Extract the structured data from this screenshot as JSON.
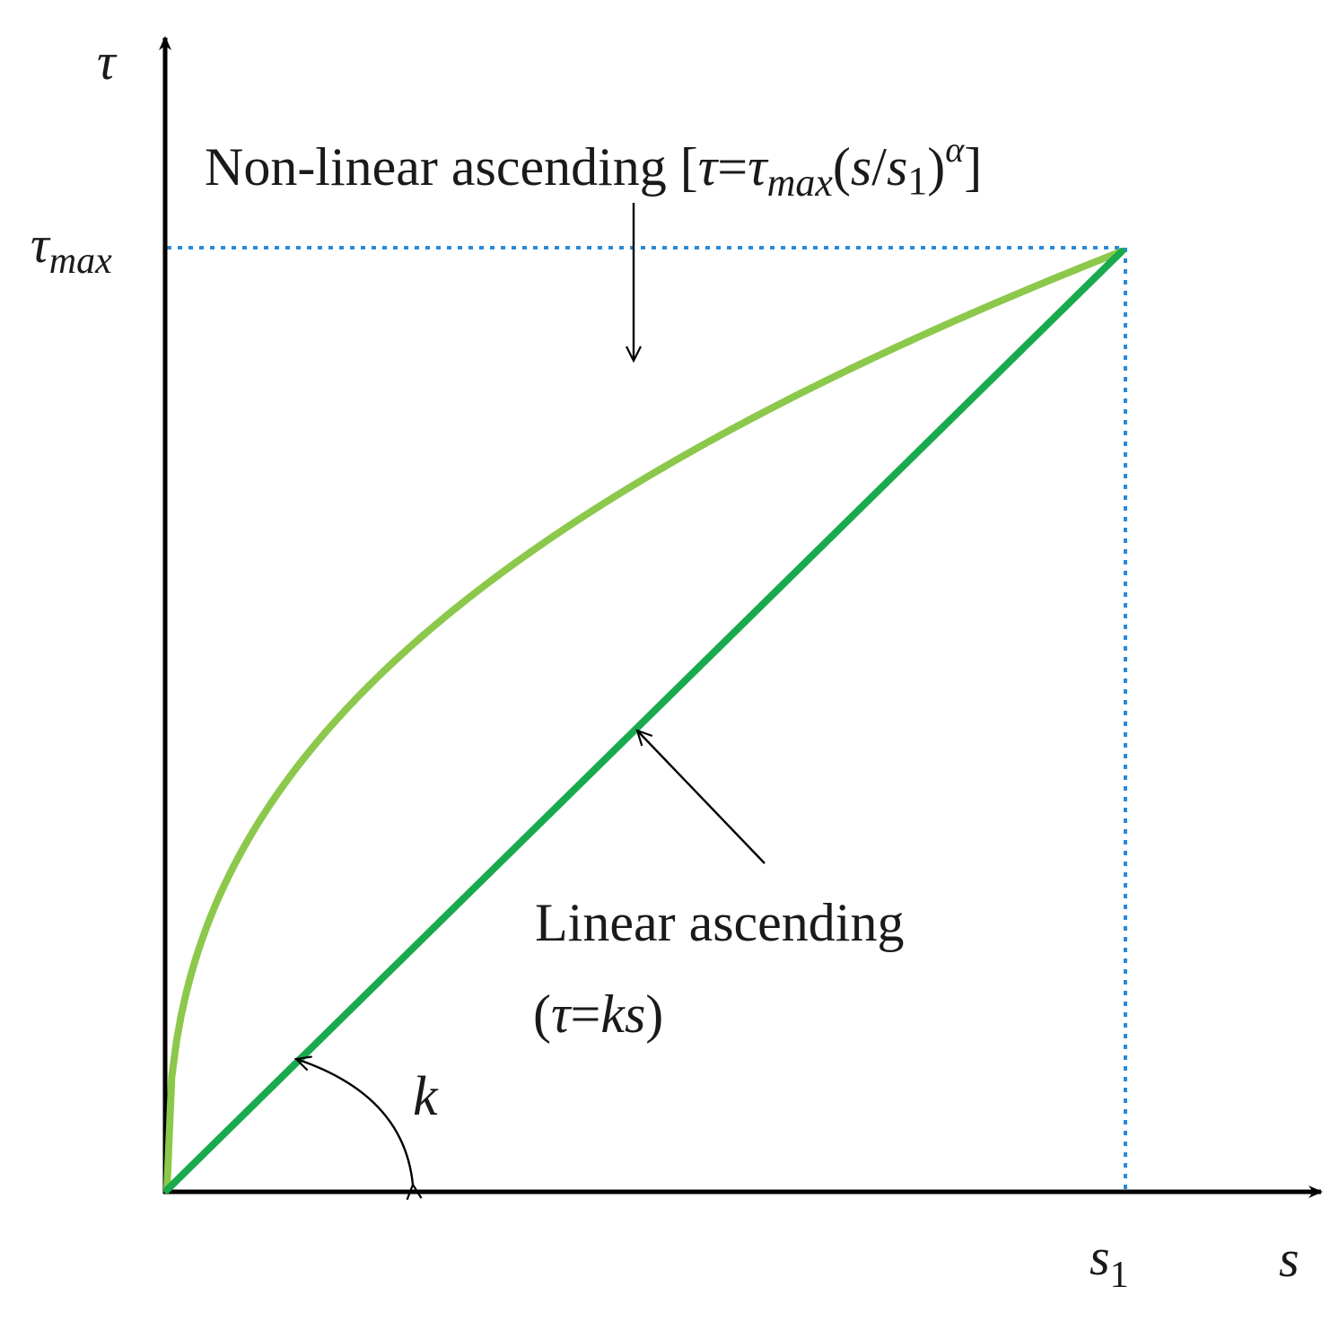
{
  "axes": {
    "y_label": "τ",
    "x_label": "s"
  },
  "ticks": {
    "tau_max_symbol": "τ",
    "tau_max_subscript": "max",
    "s1_symbol": "s",
    "s1_subscript": "1"
  },
  "curves": {
    "nonlinear": {
      "label_prefix": "Non-linear ascending [",
      "label_tau": "τ",
      "label_eq": "=",
      "label_tau2": "τ",
      "label_max": "max",
      "label_open": "(",
      "label_s": "s",
      "label_slash": "/",
      "label_s2": "s",
      "label_sub1": "1",
      "label_close": ")",
      "label_alpha": "α",
      "label_suffix": "]",
      "color": "#8cc84b",
      "exponent_alpha": 0.4
    },
    "linear": {
      "label_line1": "Linear ascending",
      "label_open": "(",
      "label_tau": "τ",
      "label_eq": "=",
      "label_ks": "ks",
      "label_close": ")",
      "color": "#1aaa4e"
    }
  },
  "angle": {
    "label": "k"
  },
  "guides": {
    "color": "#2a8ad8"
  },
  "chart_data": {
    "type": "line",
    "xlabel": "s",
    "ylabel": "τ",
    "xlim": [
      0,
      1
    ],
    "ylim": [
      0,
      1
    ],
    "series": [
      {
        "name": "Non-linear ascending",
        "x": [
          0,
          0.1,
          0.2,
          0.3,
          0.4,
          0.5,
          0.6,
          0.7,
          0.8,
          0.9,
          1.0
        ],
        "y": [
          0,
          0.4,
          0.53,
          0.62,
          0.69,
          0.76,
          0.82,
          0.87,
          0.91,
          0.96,
          1.0
        ]
      },
      {
        "name": "Linear ascending",
        "x": [
          0,
          1
        ],
        "y": [
          0,
          1
        ]
      }
    ]
  }
}
